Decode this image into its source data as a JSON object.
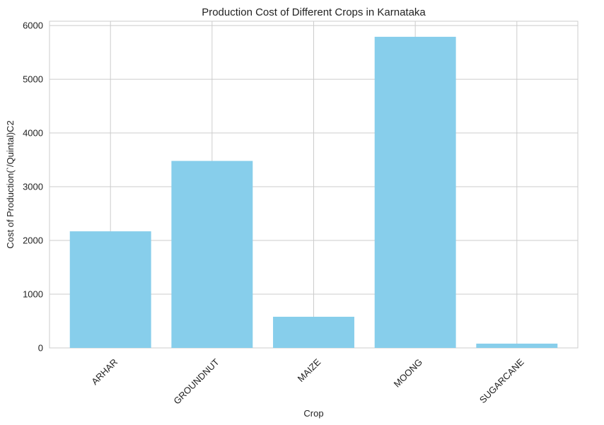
{
  "chart_data": {
    "type": "bar",
    "title": "Production Cost of Different Crops in Karnataka",
    "xlabel": "Crop",
    "ylabel": "Cost of Production(`/Quintal)C2",
    "categories": [
      "ARHAR",
      "GROUNDNUT",
      "MAIZE",
      "MOONG",
      "SUGARCANE"
    ],
    "values": [
      2170,
      3480,
      580,
      5790,
      80
    ],
    "ylim": [
      0,
      6080
    ],
    "yticks": [
      0,
      1000,
      2000,
      3000,
      4000,
      5000,
      6000
    ],
    "grid": true,
    "bar_color": "#87ceeb",
    "xtick_rotation": 45
  }
}
